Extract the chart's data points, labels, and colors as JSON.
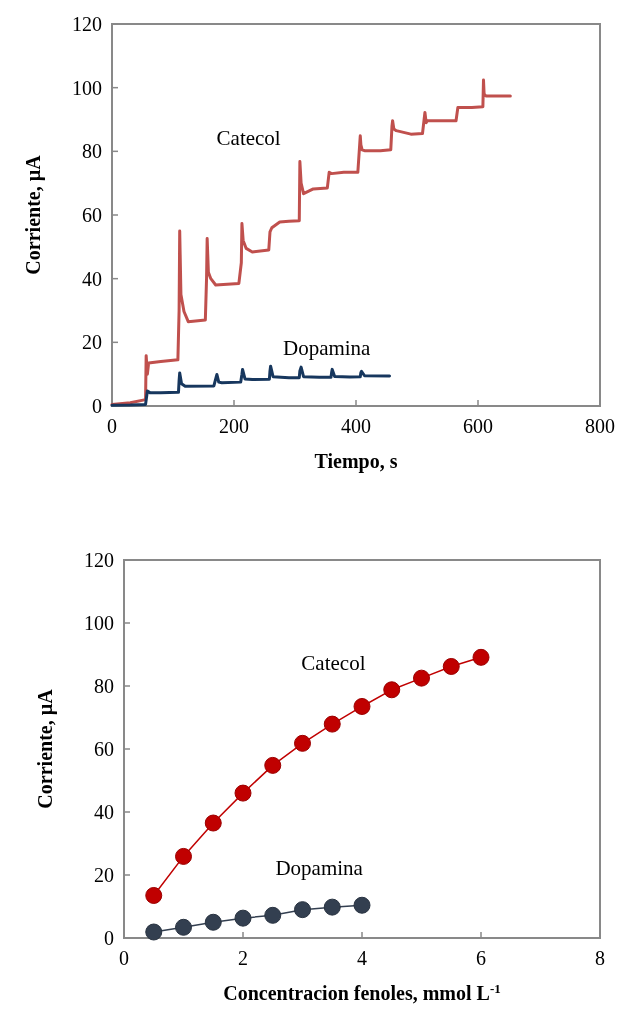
{
  "chart_data": [
    {
      "type": "line",
      "xlabel": "Tiempo, s",
      "ylabel": "Corriente, µA",
      "xlim": [
        0,
        800
      ],
      "xticks": [
        0,
        200,
        400,
        600,
        800
      ],
      "ylim": [
        0,
        120
      ],
      "yticks": [
        0,
        20,
        40,
        60,
        80,
        100,
        120
      ],
      "grid": false,
      "series": [
        {
          "name": "Catecol",
          "color": "#c0504d",
          "x": [
            0,
            30,
            55,
            56,
            58,
            60,
            80,
            108,
            110,
            111,
            113,
            118,
            125,
            153,
            155,
            156,
            158,
            162,
            170,
            208,
            212,
            213,
            215,
            220,
            230,
            257,
            259,
            262,
            275,
            290,
            307,
            308,
            310,
            314,
            330,
            353,
            356,
            360,
            380,
            403,
            407,
            408,
            410,
            414,
            440,
            457,
            459,
            460,
            462,
            466,
            490,
            509,
            513,
            515,
            517,
            521,
            540,
            564,
            567,
            570,
            590,
            608,
            609,
            610,
            613,
            630,
            653
          ],
          "values": [
            0.5,
            1,
            2,
            15.8,
            10,
            13.5,
            14,
            14.5,
            30,
            55,
            35,
            29.7,
            26.5,
            27,
            40,
            52.6,
            42,
            40,
            38,
            38.5,
            45,
            57.3,
            52,
            49.5,
            48.4,
            49,
            54.7,
            56,
            57.8,
            58,
            58.2,
            76.8,
            70,
            66.7,
            68.2,
            68.5,
            73.4,
            73,
            73.4,
            73.4,
            84.9,
            82,
            80.5,
            80.2,
            80.2,
            80.5,
            88,
            89.6,
            87,
            86.5,
            85.4,
            85.6,
            92.2,
            89,
            89.6,
            89.6,
            89.6,
            89.6,
            93.8,
            93.8,
            93.8,
            94,
            102.4,
            98,
            97.4,
            97.4,
            97.4
          ]
        },
        {
          "name": "Dopamina",
          "color": "#17375e",
          "x": [
            0,
            30,
            55,
            58,
            62,
            80,
            109,
            110,
            111,
            114,
            120,
            167,
            170,
            172,
            175,
            180,
            211,
            213,
            214,
            218,
            230,
            258,
            259,
            260,
            264,
            290,
            307,
            308,
            310,
            314,
            340,
            359,
            360,
            361,
            365,
            390,
            407,
            408,
            409,
            414,
            455
          ],
          "values": [
            0.2,
            0.3,
            0.5,
            4.7,
            4.2,
            4.2,
            4.3,
            8,
            10.4,
            7,
            6.2,
            6.3,
            8.5,
            9.9,
            7.5,
            7.3,
            7.5,
            10,
            11.5,
            8.5,
            8.3,
            8.4,
            11,
            12.5,
            9.2,
            8.9,
            8.9,
            11,
            12.2,
            9.2,
            9,
            9,
            10.5,
            11.5,
            9.3,
            9.1,
            9.2,
            10.5,
            10.9,
            9.5,
            9.4
          ]
        }
      ]
    },
    {
      "type": "line",
      "xlabel": "Concentracion fenoles, mmol L$^{-1}$",
      "ylabel": "Corriente, µA",
      "xlim": [
        0,
        8
      ],
      "xticks": [
        0,
        2,
        4,
        6,
        8
      ],
      "ylim": [
        0,
        120
      ],
      "yticks": [
        0,
        20,
        40,
        60,
        80,
        100,
        120
      ],
      "grid": false,
      "marker": "circle",
      "series": [
        {
          "name": "Catecol",
          "color": "#c00000",
          "x": [
            0.5,
            1,
            1.5,
            2,
            2.5,
            3,
            3.5,
            4,
            4.5,
            5,
            5.5,
            6
          ],
          "values": [
            13.5,
            25.9,
            36.5,
            46.0,
            54.8,
            61.8,
            67.9,
            73.5,
            78.8,
            82.5,
            86.2,
            89.1
          ]
        },
        {
          "name": "Dopamina",
          "color": "#333f50",
          "x": [
            0.5,
            1,
            1.5,
            2,
            2.5,
            3,
            3.5,
            4
          ],
          "values": [
            1.9,
            3.4,
            5.0,
            6.3,
            7.2,
            9.0,
            9.8,
            10.4
          ]
        }
      ]
    }
  ]
}
